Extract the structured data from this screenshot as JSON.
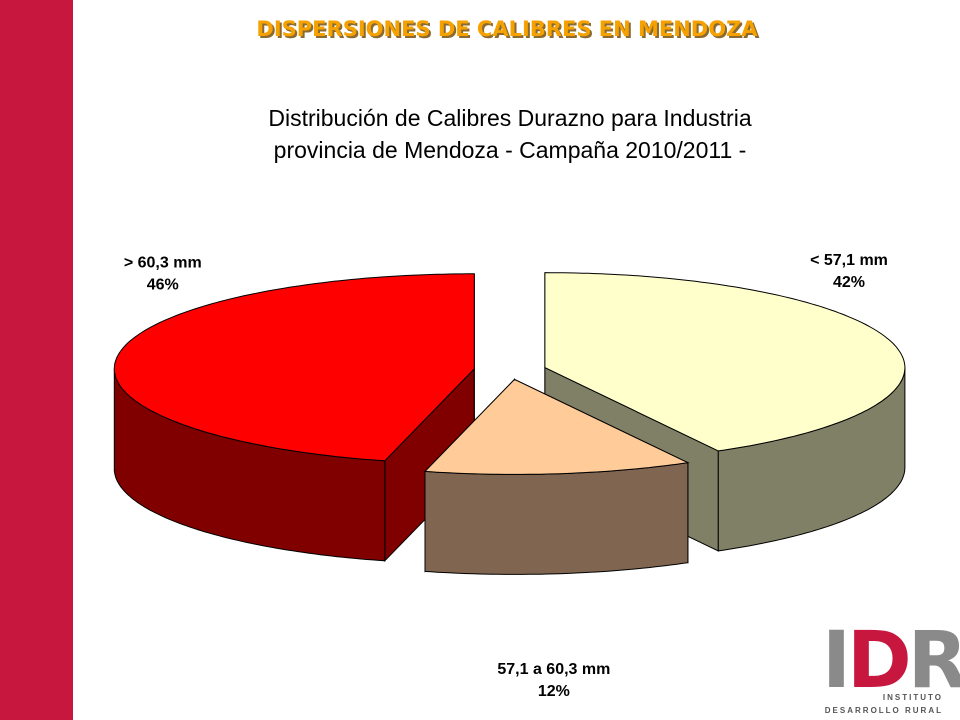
{
  "header": {
    "title": "DISPERSIONES DE CALIBRES EN MENDOZA"
  },
  "chart_data": {
    "type": "pie3d",
    "title": [
      "Distribución de Calibres Durazno para Industria",
      "provincia de Mendoza - Campaña 2010/2011 -"
    ],
    "categories": [
      "< 57,1 mm",
      "57,1 a 60,3 mm",
      "> 60,3 mm"
    ],
    "values": [
      42,
      12,
      46
    ],
    "value_labels": [
      "42%",
      "12%",
      "46%"
    ],
    "colors": [
      "#ffffcc",
      "#ffcc99",
      "#ff0000"
    ],
    "side_colors": [
      "#808066",
      "#806650",
      "#800000"
    ]
  },
  "logo": {
    "letters": [
      "I",
      "D",
      "R"
    ],
    "line1": "INSTITUTO",
    "line2": "DESARROLLO RURAL"
  }
}
